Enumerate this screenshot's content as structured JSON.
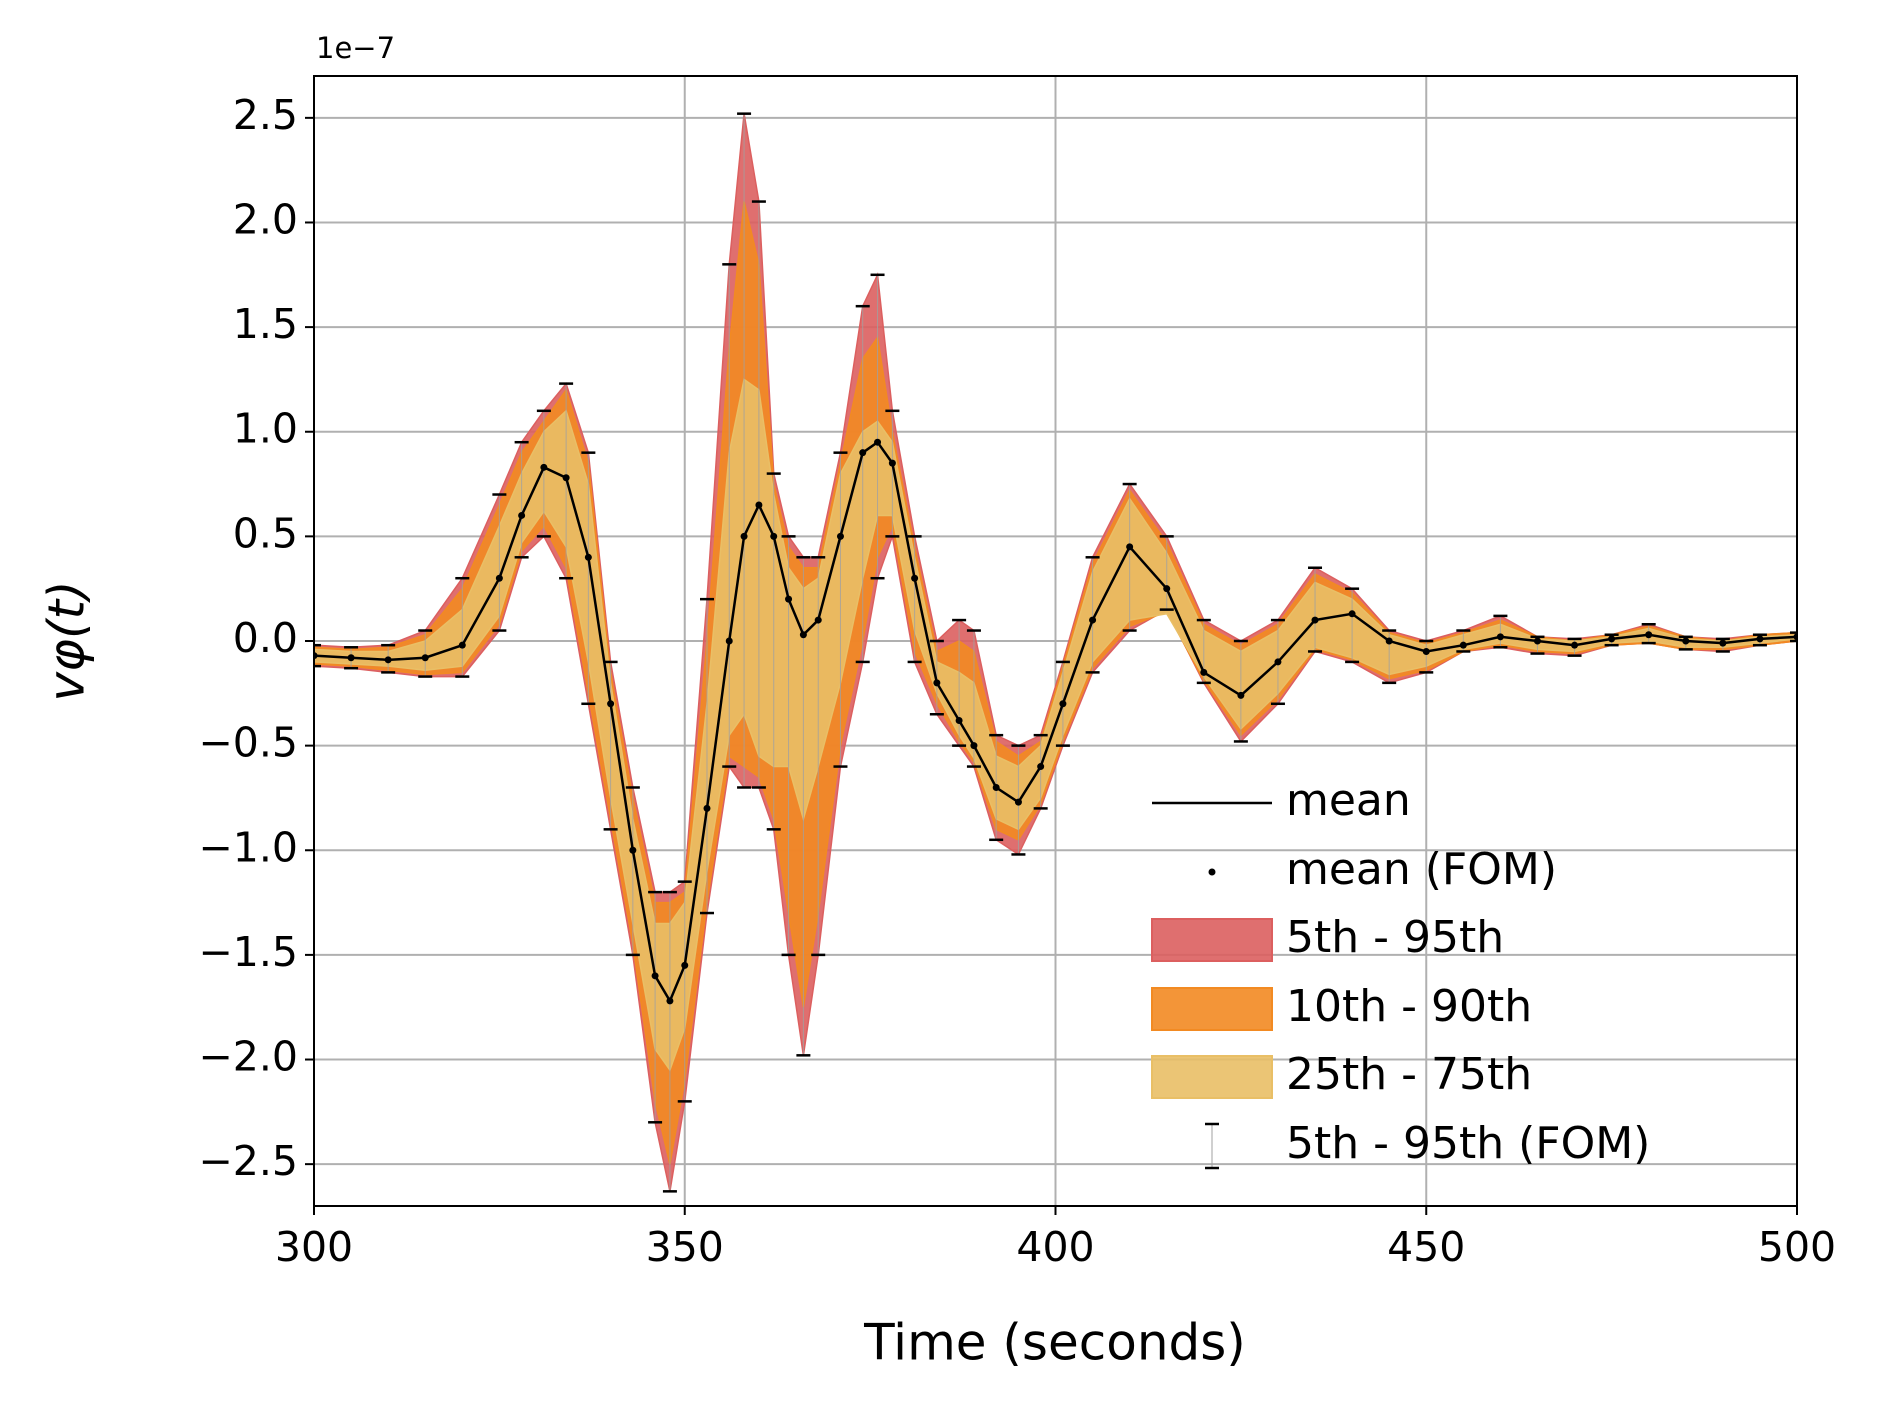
{
  "chart_data": {
    "type": "band",
    "xlabel": "Time (seconds)",
    "ylabel": "vφ(t)",
    "y_offset_label": "1e−7",
    "xlim": [
      300,
      500
    ],
    "xticks": [
      300,
      350,
      400,
      450,
      500
    ],
    "ylim": [
      -2.7,
      2.7
    ],
    "yticks": [
      {
        "value": -2.5,
        "label": "−2.5"
      },
      {
        "value": -2,
        "label": "−2.0"
      },
      {
        "value": -1.5,
        "label": "−1.5"
      },
      {
        "value": -1,
        "label": "−1.0"
      },
      {
        "value": -0.5,
        "label": "−0.5"
      },
      {
        "value": 0,
        "label": "0.0"
      },
      0.5,
      {
        "value": 1,
        "label": "1.0"
      },
      1.5,
      {
        "value": 2,
        "label": "2.0"
      },
      2.5
    ],
    "grid": true,
    "legend": "lower right",
    "x": [
      300,
      305,
      310,
      315,
      320,
      325,
      328,
      331,
      334,
      337,
      340,
      343,
      346,
      348,
      350,
      353,
      356,
      358,
      360,
      362,
      364,
      366,
      368,
      371,
      374,
      376,
      378,
      381,
      384,
      387,
      389,
      392,
      395,
      398,
      401,
      405,
      410,
      415,
      420,
      425,
      430,
      435,
      440,
      445,
      450,
      455,
      460,
      465,
      470,
      475,
      480,
      485,
      490,
      495,
      500
    ],
    "series": [
      {
        "name": "mean",
        "color": "#000000",
        "values": [
          -0.07,
          -0.08,
          -0.09,
          -0.08,
          -0.02,
          0.3,
          0.6,
          0.83,
          0.78,
          0.4,
          -0.3,
          -1.0,
          -1.6,
          -1.72,
          -1.55,
          -0.8,
          0.0,
          0.5,
          0.65,
          0.5,
          0.2,
          0.03,
          0.1,
          0.5,
          0.9,
          0.95,
          0.85,
          0.3,
          -0.2,
          -0.38,
          -0.5,
          -0.7,
          -0.77,
          -0.6,
          -0.3,
          0.1,
          0.45,
          0.25,
          -0.15,
          -0.26,
          -0.1,
          0.1,
          0.13,
          0.0,
          -0.05,
          -0.02,
          0.02,
          0.0,
          -0.02,
          0.01,
          0.03,
          0.0,
          -0.01,
          0.01,
          0.02
        ]
      },
      {
        "name": "mean (FOM)",
        "color": "#000000",
        "values": [
          -0.07,
          -0.08,
          -0.09,
          -0.08,
          -0.02,
          0.3,
          0.6,
          0.83,
          0.78,
          0.4,
          -0.3,
          -1.0,
          -1.6,
          -1.72,
          -1.55,
          -0.8,
          0.0,
          0.5,
          0.65,
          0.5,
          0.2,
          0.03,
          0.1,
          0.5,
          0.9,
          0.95,
          0.85,
          0.3,
          -0.2,
          -0.38,
          -0.5,
          -0.7,
          -0.77,
          -0.6,
          -0.3,
          0.1,
          0.45,
          0.25,
          -0.15,
          -0.26,
          -0.1,
          0.1,
          0.13,
          0.0,
          -0.05,
          -0.02,
          0.02,
          0.0,
          -0.02,
          0.01,
          0.03,
          0.0,
          -0.01,
          0.01,
          0.02
        ]
      }
    ],
    "bands": [
      {
        "name": "5th - 95th",
        "color": "#dc5f5f",
        "lower": [
          -0.12,
          -0.13,
          -0.15,
          -0.17,
          -0.17,
          0.05,
          0.4,
          0.5,
          0.3,
          -0.3,
          -0.9,
          -1.5,
          -2.3,
          -2.63,
          -2.2,
          -1.3,
          -0.6,
          -0.7,
          -0.7,
          -0.9,
          -1.5,
          -1.98,
          -1.5,
          -0.6,
          -0.1,
          0.3,
          0.5,
          -0.1,
          -0.35,
          -0.5,
          -0.6,
          -0.95,
          -1.02,
          -0.8,
          -0.5,
          -0.15,
          0.05,
          0.15,
          -0.2,
          -0.48,
          -0.3,
          -0.05,
          -0.1,
          -0.2,
          -0.15,
          -0.05,
          -0.03,
          -0.06,
          -0.07,
          -0.02,
          -0.01,
          -0.04,
          -0.05,
          -0.02,
          0.0
        ],
        "upper": [
          -0.02,
          -0.03,
          -0.02,
          0.05,
          0.3,
          0.7,
          0.95,
          1.1,
          1.23,
          0.9,
          -0.1,
          -0.7,
          -1.2,
          -1.2,
          -1.15,
          0.2,
          1.8,
          2.52,
          2.1,
          0.8,
          0.5,
          0.4,
          0.4,
          0.9,
          1.6,
          1.75,
          1.1,
          0.5,
          0.0,
          0.1,
          0.05,
          -0.45,
          -0.5,
          -0.45,
          -0.1,
          0.4,
          0.75,
          0.5,
          0.1,
          0.0,
          0.1,
          0.35,
          0.25,
          0.05,
          0.0,
          0.05,
          0.12,
          0.02,
          0.01,
          0.03,
          0.08,
          0.02,
          0.01,
          0.03,
          0.04
        ]
      },
      {
        "name": "10th - 90th",
        "color": "#f28a22",
        "lower": [
          -0.11,
          -0.12,
          -0.14,
          -0.16,
          -0.15,
          0.08,
          0.43,
          0.55,
          0.35,
          -0.25,
          -0.85,
          -1.45,
          -2.2,
          -2.5,
          -2.1,
          -1.25,
          -0.55,
          -0.6,
          -0.65,
          -0.85,
          -1.3,
          -1.75,
          -1.3,
          -0.5,
          0.0,
          0.4,
          0.55,
          -0.05,
          -0.3,
          -0.48,
          -0.58,
          -0.9,
          -0.95,
          -0.78,
          -0.48,
          -0.13,
          0.07,
          0.14,
          -0.19,
          -0.45,
          -0.28,
          -0.04,
          -0.09,
          -0.18,
          -0.14,
          -0.05,
          -0.02,
          -0.05,
          -0.06,
          -0.02,
          -0.01,
          -0.04,
          -0.04,
          -0.02,
          0.0
        ],
        "upper": [
          -0.03,
          -0.04,
          -0.03,
          0.03,
          0.25,
          0.65,
          0.9,
          1.05,
          1.2,
          0.85,
          -0.15,
          -0.75,
          -1.25,
          -1.25,
          -1.2,
          0.0,
          1.4,
          2.1,
          1.8,
          0.75,
          0.45,
          0.35,
          0.35,
          0.85,
          1.35,
          1.45,
          1.0,
          0.45,
          -0.05,
          0.0,
          -0.05,
          -0.48,
          -0.55,
          -0.48,
          -0.12,
          0.37,
          0.72,
          0.47,
          0.08,
          -0.02,
          0.08,
          0.32,
          0.23,
          0.04,
          -0.01,
          0.04,
          0.1,
          0.02,
          0.0,
          0.03,
          0.07,
          0.02,
          0.0,
          0.03,
          0.04
        ]
      },
      {
        "name": "25th - 75th",
        "color": "#e9bf66",
        "lower": [
          -0.1,
          -0.11,
          -0.12,
          -0.14,
          -0.12,
          0.12,
          0.47,
          0.62,
          0.45,
          -0.1,
          -0.75,
          -1.35,
          -1.95,
          -2.05,
          -1.85,
          -1.1,
          -0.45,
          -0.35,
          -0.55,
          -0.6,
          -0.6,
          -0.85,
          -0.6,
          -0.2,
          0.3,
          0.6,
          0.6,
          0.05,
          -0.25,
          -0.45,
          -0.56,
          -0.85,
          -0.9,
          -0.75,
          -0.45,
          -0.1,
          0.1,
          0.13,
          -0.17,
          -0.42,
          -0.25,
          -0.03,
          -0.08,
          -0.16,
          -0.12,
          -0.04,
          -0.01,
          -0.04,
          -0.05,
          -0.01,
          0.0,
          -0.03,
          -0.03,
          -0.01,
          0.01
        ],
        "upper": [
          -0.04,
          -0.05,
          -0.05,
          0.0,
          0.15,
          0.55,
          0.8,
          1.0,
          1.1,
          0.75,
          -0.2,
          -0.85,
          -1.35,
          -1.35,
          -1.25,
          -0.3,
          0.9,
          1.25,
          1.2,
          0.7,
          0.35,
          0.25,
          0.3,
          0.8,
          1.0,
          1.05,
          0.95,
          0.4,
          -0.1,
          -0.15,
          -0.2,
          -0.55,
          -0.6,
          -0.5,
          -0.15,
          0.33,
          0.68,
          0.42,
          0.05,
          -0.05,
          0.05,
          0.28,
          0.2,
          0.03,
          -0.02,
          0.03,
          0.08,
          0.01,
          0.0,
          0.02,
          0.06,
          0.01,
          0.0,
          0.02,
          0.03
        ]
      }
    ],
    "errorbars": {
      "name": "5th - 95th (FOM)",
      "color": "#000000",
      "lower": [
        -0.12,
        -0.13,
        -0.15,
        -0.17,
        -0.17,
        0.05,
        0.4,
        0.5,
        0.3,
        -0.3,
        -0.9,
        -1.5,
        -2.3,
        -2.63,
        -2.2,
        -1.3,
        -0.6,
        -0.7,
        -0.7,
        -0.9,
        -1.5,
        -1.98,
        -1.5,
        -0.6,
        -0.1,
        0.3,
        0.5,
        -0.1,
        -0.35,
        -0.5,
        -0.6,
        -0.95,
        -1.02,
        -0.8,
        -0.5,
        -0.15,
        0.05,
        0.15,
        -0.2,
        -0.48,
        -0.3,
        -0.05,
        -0.1,
        -0.2,
        -0.15,
        -0.05,
        -0.03,
        -0.06,
        -0.07,
        -0.02,
        -0.01,
        -0.04,
        -0.05,
        -0.02,
        0.0
      ],
      "upper": [
        -0.02,
        -0.03,
        -0.02,
        0.05,
        0.3,
        0.7,
        0.95,
        1.1,
        1.23,
        0.9,
        -0.1,
        -0.7,
        -1.2,
        -1.2,
        -1.15,
        0.2,
        1.8,
        2.52,
        2.1,
        0.8,
        0.5,
        0.4,
        0.4,
        0.9,
        1.6,
        1.75,
        1.1,
        0.5,
        0.0,
        0.1,
        0.05,
        -0.45,
        -0.5,
        -0.45,
        -0.1,
        0.4,
        0.75,
        0.5,
        0.1,
        0.0,
        0.1,
        0.35,
        0.25,
        0.05,
        0.0,
        0.05,
        0.12,
        0.02,
        0.01,
        0.03,
        0.08,
        0.02,
        0.01,
        0.03,
        0.04
      ]
    }
  }
}
